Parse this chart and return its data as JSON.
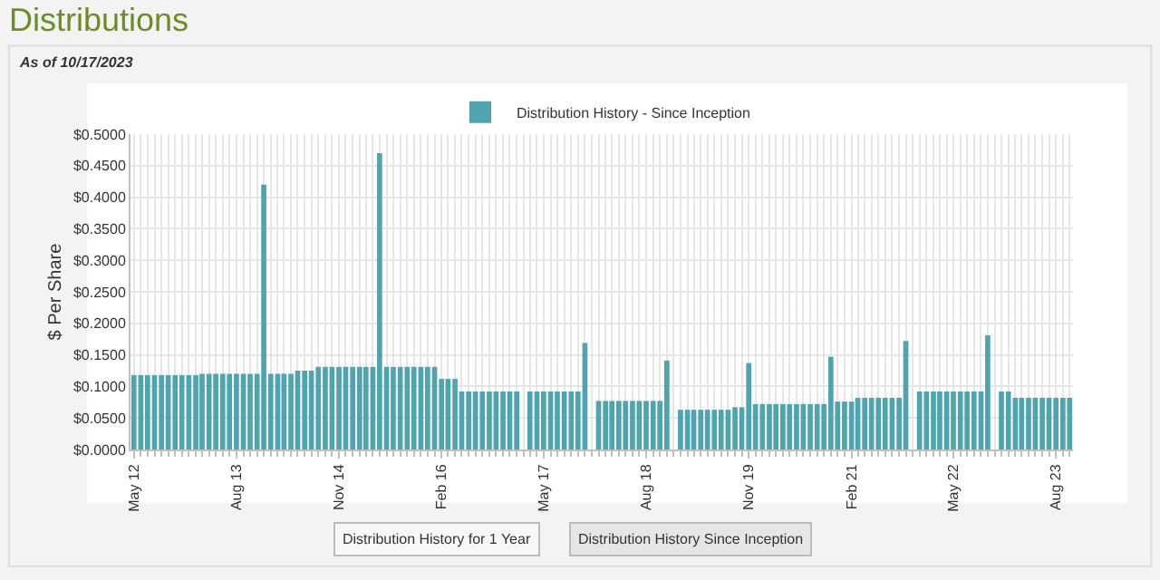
{
  "chart_data": {
    "type": "bar",
    "title": "Distributions",
    "subtitle": "As of 10/17/2023",
    "ylabel": "$ Per Share",
    "annotations": [
      "Distribution History for 1 Year",
      "Distribution History Since Inception"
    ],
    "x": [
      "2012-05",
      "2012-06",
      "2012-07",
      "2012-08",
      "2012-09",
      "2012-10",
      "2012-11",
      "2012-12",
      "2013-01",
      "2013-02",
      "2013-03",
      "2013-04",
      "2013-05",
      "2013-06",
      "2013-07",
      "2013-08",
      "2013-09",
      "2013-10",
      "2013-11",
      "2013-12",
      "2014-01",
      "2014-02",
      "2014-03",
      "2014-04",
      "2014-05",
      "2014-06",
      "2014-07",
      "2014-08",
      "2014-09",
      "2014-10",
      "2014-11",
      "2014-12",
      "2015-01",
      "2015-02",
      "2015-03",
      "2015-04",
      "2015-05",
      "2015-06",
      "2015-07",
      "2015-08",
      "2015-09",
      "2015-10",
      "2015-11",
      "2015-12",
      "2016-01",
      "2016-02",
      "2016-03",
      "2016-04",
      "2016-05",
      "2016-06",
      "2016-07",
      "2016-08",
      "2016-09",
      "2016-10",
      "2016-11",
      "2016-12",
      "2017-01",
      "2017-02",
      "2017-03",
      "2017-04",
      "2017-05",
      "2017-06",
      "2017-07",
      "2017-08",
      "2017-09",
      "2017-10",
      "2017-11",
      "2017-12",
      "2018-01",
      "2018-02",
      "2018-03",
      "2018-04",
      "2018-05",
      "2018-06",
      "2018-07",
      "2018-08",
      "2018-09",
      "2018-10",
      "2018-11",
      "2018-12",
      "2019-01",
      "2019-02",
      "2019-03",
      "2019-04",
      "2019-05",
      "2019-06",
      "2019-07",
      "2019-08",
      "2019-09",
      "2019-10",
      "2019-11",
      "2019-12",
      "2020-01",
      "2020-02",
      "2020-03",
      "2020-04",
      "2020-05",
      "2020-06",
      "2020-07",
      "2020-08",
      "2020-09",
      "2020-10",
      "2020-11",
      "2020-12",
      "2021-01",
      "2021-02",
      "2021-03",
      "2021-04",
      "2021-05",
      "2021-06",
      "2021-07",
      "2021-08",
      "2021-09",
      "2021-10",
      "2021-11",
      "2021-12",
      "2022-01",
      "2022-02",
      "2022-03",
      "2022-04",
      "2022-05",
      "2022-06",
      "2022-07",
      "2022-08",
      "2022-09",
      "2022-10",
      "2022-11",
      "2022-12",
      "2023-01",
      "2023-02",
      "2023-03",
      "2023-04",
      "2023-05",
      "2023-06",
      "2023-07",
      "2023-08",
      "2023-09",
      "2023-10"
    ],
    "series": [
      {
        "name": "Distribution History - Since Inception",
        "color": "#4ea5b1",
        "values": [
          0.118,
          0.118,
          0.118,
          0.118,
          0.118,
          0.118,
          0.118,
          0.118,
          0.118,
          0.118,
          0.12,
          0.12,
          0.12,
          0.12,
          0.12,
          0.12,
          0.12,
          0.12,
          0.12,
          0.42,
          0.12,
          0.12,
          0.12,
          0.12,
          0.125,
          0.125,
          0.125,
          0.131,
          0.131,
          0.131,
          0.131,
          0.131,
          0.131,
          0.131,
          0.131,
          0.131,
          0.47,
          0.131,
          0.131,
          0.131,
          0.131,
          0.131,
          0.131,
          0.131,
          0.131,
          0.112,
          0.112,
          0.112,
          0.092,
          0.092,
          0.092,
          0.092,
          0.092,
          0.092,
          0.092,
          0.092,
          0.092,
          null,
          0.092,
          0.092,
          0.092,
          0.092,
          0.092,
          0.092,
          0.092,
          0.092,
          0.169,
          null,
          0.077,
          0.077,
          0.077,
          0.077,
          0.077,
          0.077,
          0.077,
          0.077,
          0.077,
          0.077,
          0.141,
          null,
          0.063,
          0.063,
          0.063,
          0.063,
          0.063,
          0.063,
          0.063,
          0.063,
          0.067,
          0.067,
          0.137,
          0.072,
          0.072,
          0.072,
          0.072,
          0.072,
          0.072,
          0.072,
          0.072,
          0.072,
          0.072,
          0.072,
          0.147,
          0.076,
          0.076,
          0.076,
          0.082,
          0.082,
          0.082,
          0.082,
          0.082,
          0.082,
          0.082,
          0.172,
          null,
          0.092,
          0.092,
          0.092,
          0.092,
          0.092,
          0.092,
          0.092,
          0.092,
          0.092,
          0.092,
          0.181,
          null,
          0.092,
          0.092,
          0.082,
          0.082,
          0.082,
          0.082,
          0.082,
          0.082,
          0.082,
          0.082,
          0.082
        ]
      }
    ],
    "xlim": [
      "2012-04-16",
      "2023-10-16"
    ],
    "xticks": [
      {
        "value": "2012-05",
        "label": "May 12"
      },
      {
        "value": "2013-08",
        "label": "Aug 13"
      },
      {
        "value": "2014-11",
        "label": "Nov 14"
      },
      {
        "value": "2016-02",
        "label": "Feb 16"
      },
      {
        "value": "2017-05",
        "label": "May 17"
      },
      {
        "value": "2018-08",
        "label": "Aug 18"
      },
      {
        "value": "2019-11",
        "label": "Nov 19"
      },
      {
        "value": "2021-02",
        "label": "Feb 21"
      },
      {
        "value": "2022-05",
        "label": "May 22"
      },
      {
        "value": "2023-08",
        "label": "Aug 23"
      }
    ],
    "ylim": [
      0,
      0.5
    ],
    "yticks": [
      {
        "value": 0,
        "label": "$0.0000"
      },
      {
        "value": 0.05,
        "label": "$0.0500"
      },
      {
        "value": 0.1,
        "label": "$0.1000"
      },
      {
        "value": 0.15,
        "label": "$0.1500"
      },
      {
        "value": 0.2,
        "label": "$0.2000"
      },
      {
        "value": 0.25,
        "label": "$0.2500"
      },
      {
        "value": 0.3,
        "label": "$0.3000"
      },
      {
        "value": 0.35,
        "label": "$0.3500"
      },
      {
        "value": 0.4,
        "label": "$0.4000"
      },
      {
        "value": 0.45,
        "label": "$0.4500"
      },
      {
        "value": 0.5,
        "label": "$0.5000"
      }
    ],
    "grid": true,
    "legend": "top"
  }
}
